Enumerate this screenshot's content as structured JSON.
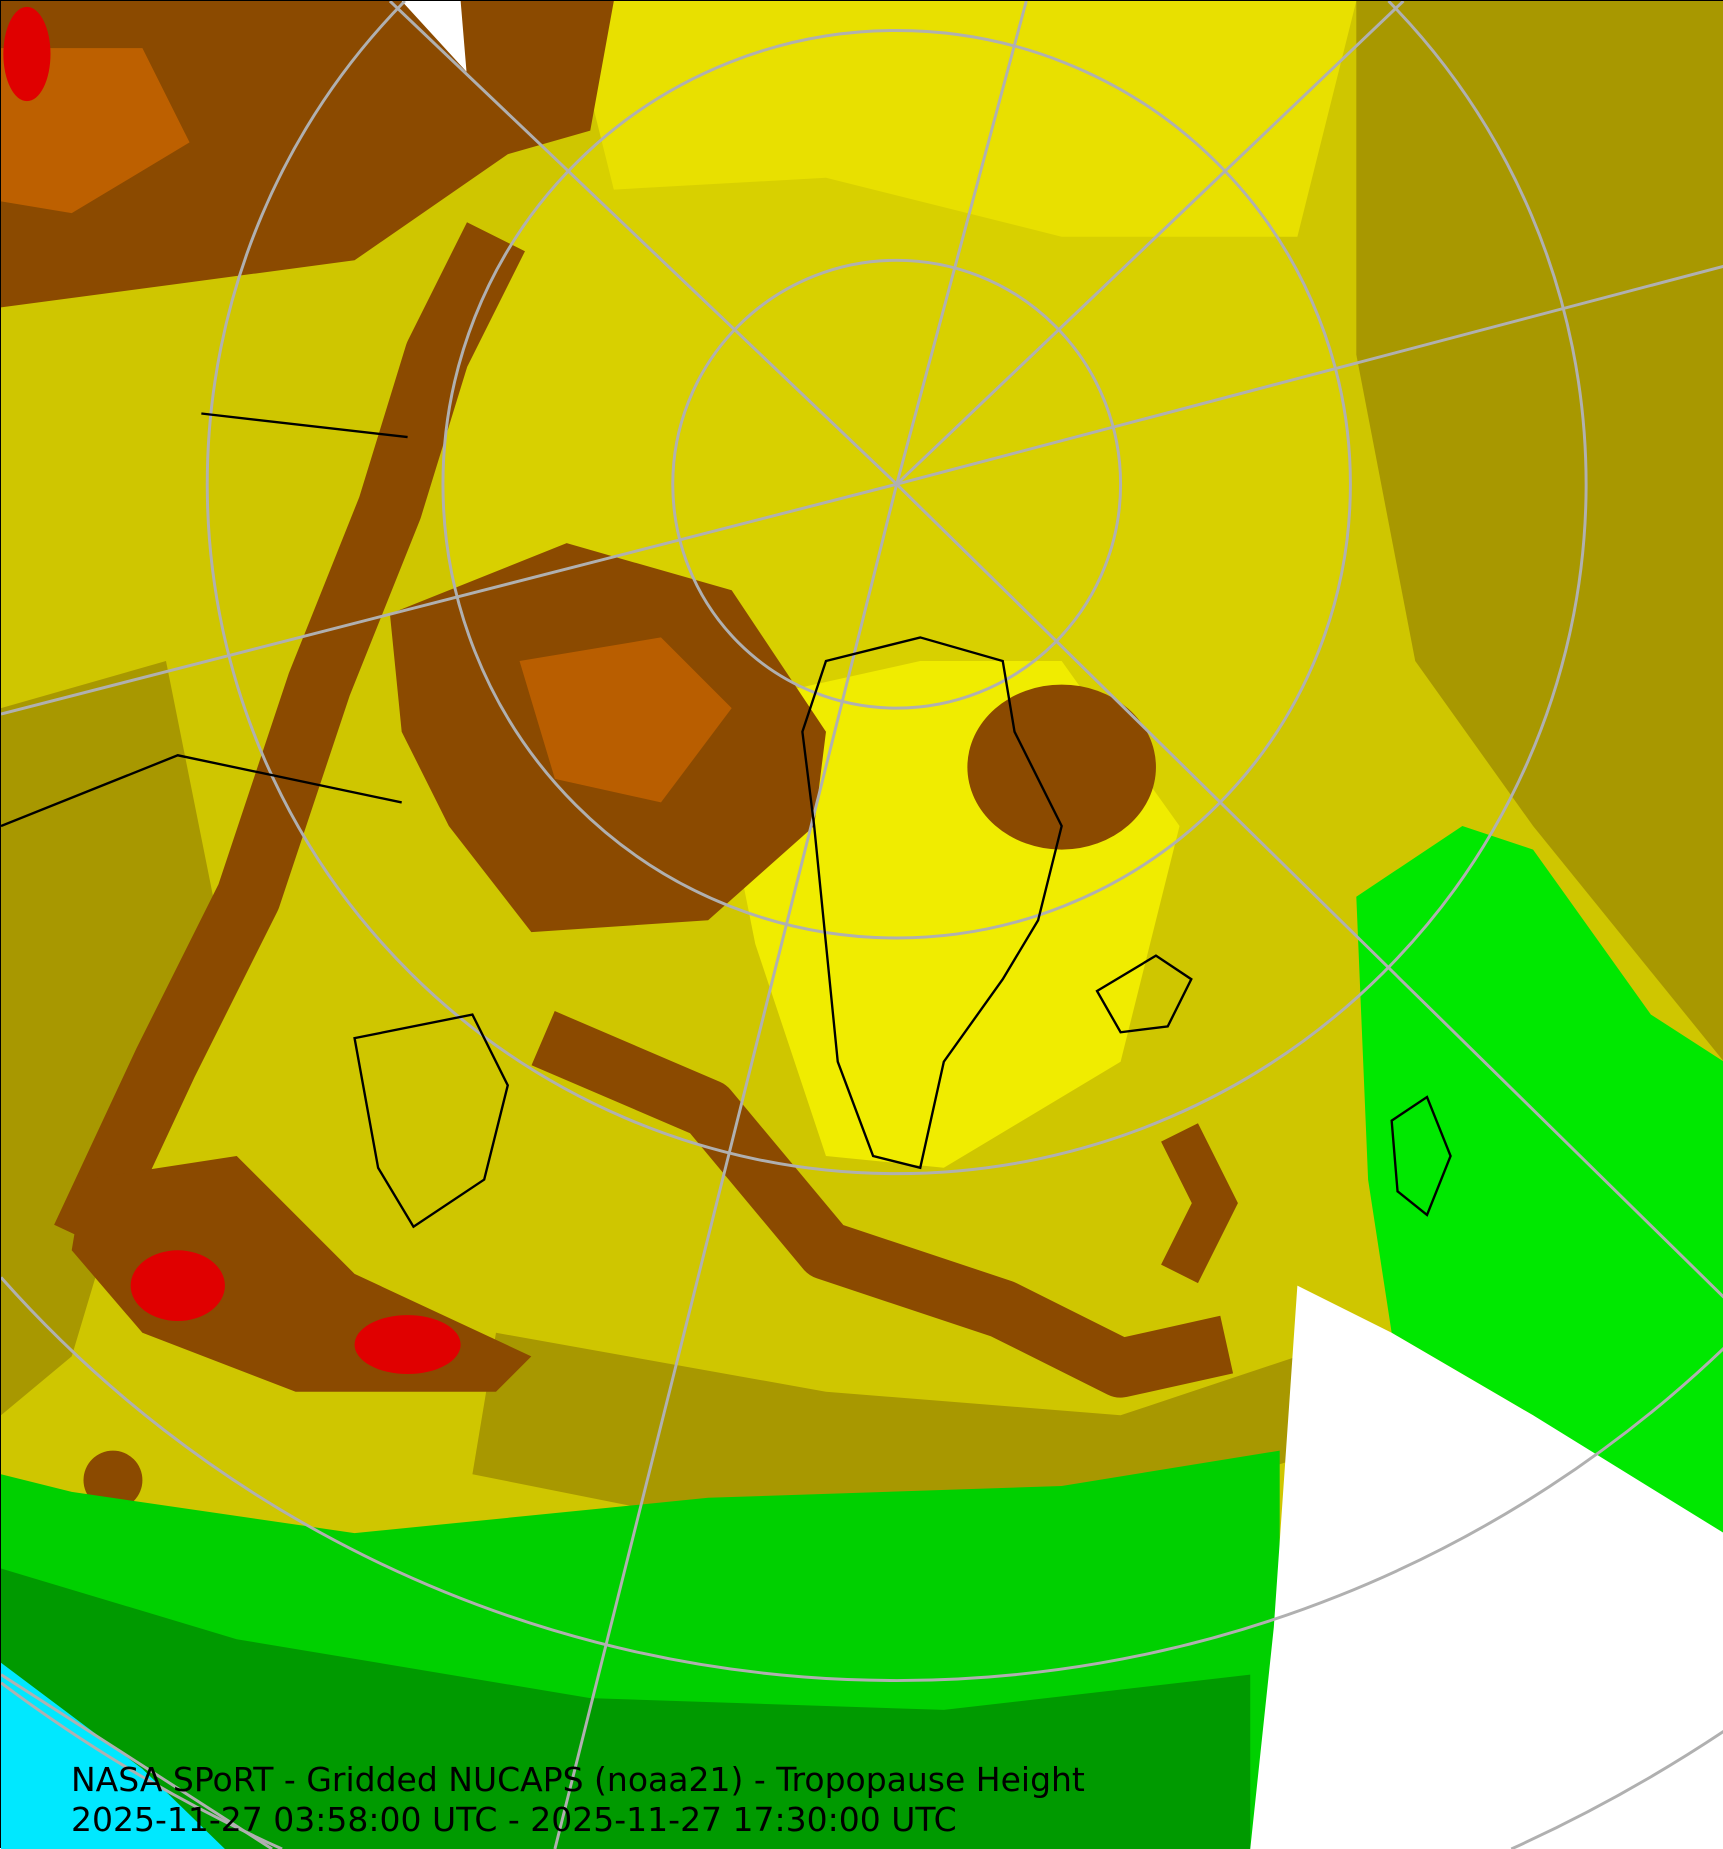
{
  "caption": {
    "title": "NASA SPoRT - Gridded NUCAPS (noaa21) - Tropopause Height",
    "time_range": "2025-11-27 03:58:00 UTC - 2025-11-27 17:30:00 UTC"
  },
  "map": {
    "projection": "north polar stereographic",
    "field": "Tropopause Height",
    "colors": {
      "yellow": "#f0ec00",
      "olive_light": "#cfc600",
      "olive": "#a89800",
      "olive_dark": "#8c7c00",
      "brown": "#8b4a00",
      "orange": "#e07000",
      "red": "#e00000",
      "green_bright": "#00ff00",
      "green": "#00c000",
      "green_dark": "#009000",
      "cyan": "#00e8ff",
      "no_data": "#ffffff",
      "grid": "#b0b0b0",
      "coastline": "#000000"
    }
  }
}
